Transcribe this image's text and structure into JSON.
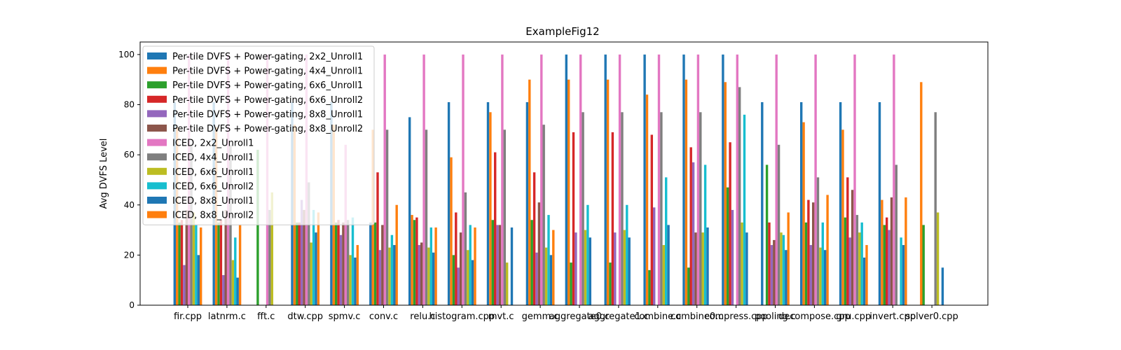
{
  "chart_data": {
    "type": "bar",
    "title": "ExampleFig12",
    "xlabel": "",
    "ylabel": "Avg DVFS Level",
    "ylim": [
      0,
      105
    ],
    "yticks": [
      0,
      20,
      40,
      60,
      80,
      100
    ],
    "grid": false,
    "legend_position": "top-left",
    "categories": [
      "fir.cpp",
      "latnrm.c",
      "fft.c",
      "dtw.cpp",
      "spmv.c",
      "conv.c",
      "relu.c",
      "histogram.cpp",
      "mvt.c",
      "gemm.c",
      "aggregate0.c",
      "aggregate1.c",
      "combine.c",
      "combine0.c",
      "compress.cpp",
      "pooling.c",
      "decompose.cpp",
      "gru.cpp",
      "invert.cpp",
      "solver0.cpp"
    ],
    "series": [
      {
        "name": "Per-tile DVFS + Power-gating, 2x2_Unroll1",
        "color": "#1f77b4",
        "values": [
          81,
          81,
          0,
          81,
          81,
          33,
          75,
          81,
          81,
          81,
          100,
          100,
          100,
          100,
          100,
          81,
          81,
          81,
          81,
          0
        ]
      },
      {
        "name": "Per-tile DVFS + Power-gating, 4x4_Unroll1",
        "color": "#ff7f0e",
        "values": [
          71,
          71,
          0,
          72,
          72,
          70,
          36,
          59,
          77,
          90,
          90,
          90,
          84,
          90,
          89,
          0,
          73,
          70,
          42,
          89
        ]
      },
      {
        "name": "Per-tile DVFS + Power-gating, 6x6_Unroll1",
        "color": "#2ca02c",
        "values": [
          33,
          33,
          62,
          33,
          33,
          33,
          34,
          20,
          34,
          34,
          17,
          17,
          14,
          15,
          47,
          56,
          33,
          35,
          32,
          32
        ]
      },
      {
        "name": "Per-tile DVFS + Power-gating, 6x6_Unroll2",
        "color": "#d62728",
        "values": [
          34,
          34,
          0,
          33,
          34,
          53,
          35,
          37,
          61,
          53,
          69,
          69,
          68,
          63,
          65,
          33,
          42,
          51,
          35,
          0
        ]
      },
      {
        "name": "Per-tile DVFS + Power-gating, 8x8_Unroll1",
        "color": "#9467bd",
        "values": [
          16,
          12,
          0,
          42,
          28,
          22,
          24,
          15,
          32,
          21,
          29,
          29,
          39,
          57,
          38,
          24,
          24,
          27,
          30,
          0
        ]
      },
      {
        "name": "Per-tile DVFS + Power-gating, 8x8_Unroll2",
        "color": "#8c564b",
        "values": [
          38,
          38,
          0,
          38,
          33,
          32,
          25,
          29,
          32,
          41,
          0,
          0,
          0,
          29,
          0,
          26,
          41,
          46,
          43,
          0
        ]
      },
      {
        "name": "ICED, 2x2_Unroll1",
        "color": "#e377c2",
        "values": [
          100,
          100,
          100,
          100,
          64,
          100,
          100,
          100,
          100,
          100,
          100,
          100,
          100,
          100,
          100,
          100,
          100,
          100,
          100,
          0
        ]
      },
      {
        "name": "ICED, 4x4_Unroll1",
        "color": "#7f7f7f",
        "values": [
          64,
          64,
          38,
          49,
          34,
          70,
          70,
          45,
          70,
          72,
          77,
          77,
          77,
          77,
          87,
          64,
          51,
          36,
          56,
          77
        ]
      },
      {
        "name": "ICED, 6x6_Unroll1",
        "color": "#bcbd22",
        "values": [
          37,
          18,
          45,
          25,
          20,
          23,
          23,
          22,
          17,
          23,
          30,
          30,
          24,
          29,
          33,
          29,
          23,
          29,
          0,
          37
        ]
      },
      {
        "name": "ICED, 6x6_Unroll2",
        "color": "#17becf",
        "values": [
          32,
          27,
          0,
          38,
          35,
          28,
          31,
          32,
          0,
          36,
          40,
          40,
          51,
          56,
          76,
          28,
          33,
          33,
          27,
          0
        ]
      },
      {
        "name": "ICED, 8x8_Unroll1",
        "color": "#1f77b4",
        "values": [
          20,
          11,
          0,
          29,
          19,
          24,
          21,
          18,
          31,
          20,
          27,
          27,
          32,
          31,
          29,
          22,
          22,
          19,
          24,
          15
        ]
      },
      {
        "name": "ICED, 8x8_Unroll2",
        "color": "#ff7f0e",
        "values": [
          31,
          32,
          0,
          37,
          24,
          40,
          31,
          31,
          0,
          30,
          0,
          0,
          0,
          0,
          0,
          37,
          44,
          24,
          43,
          0
        ]
      }
    ]
  }
}
